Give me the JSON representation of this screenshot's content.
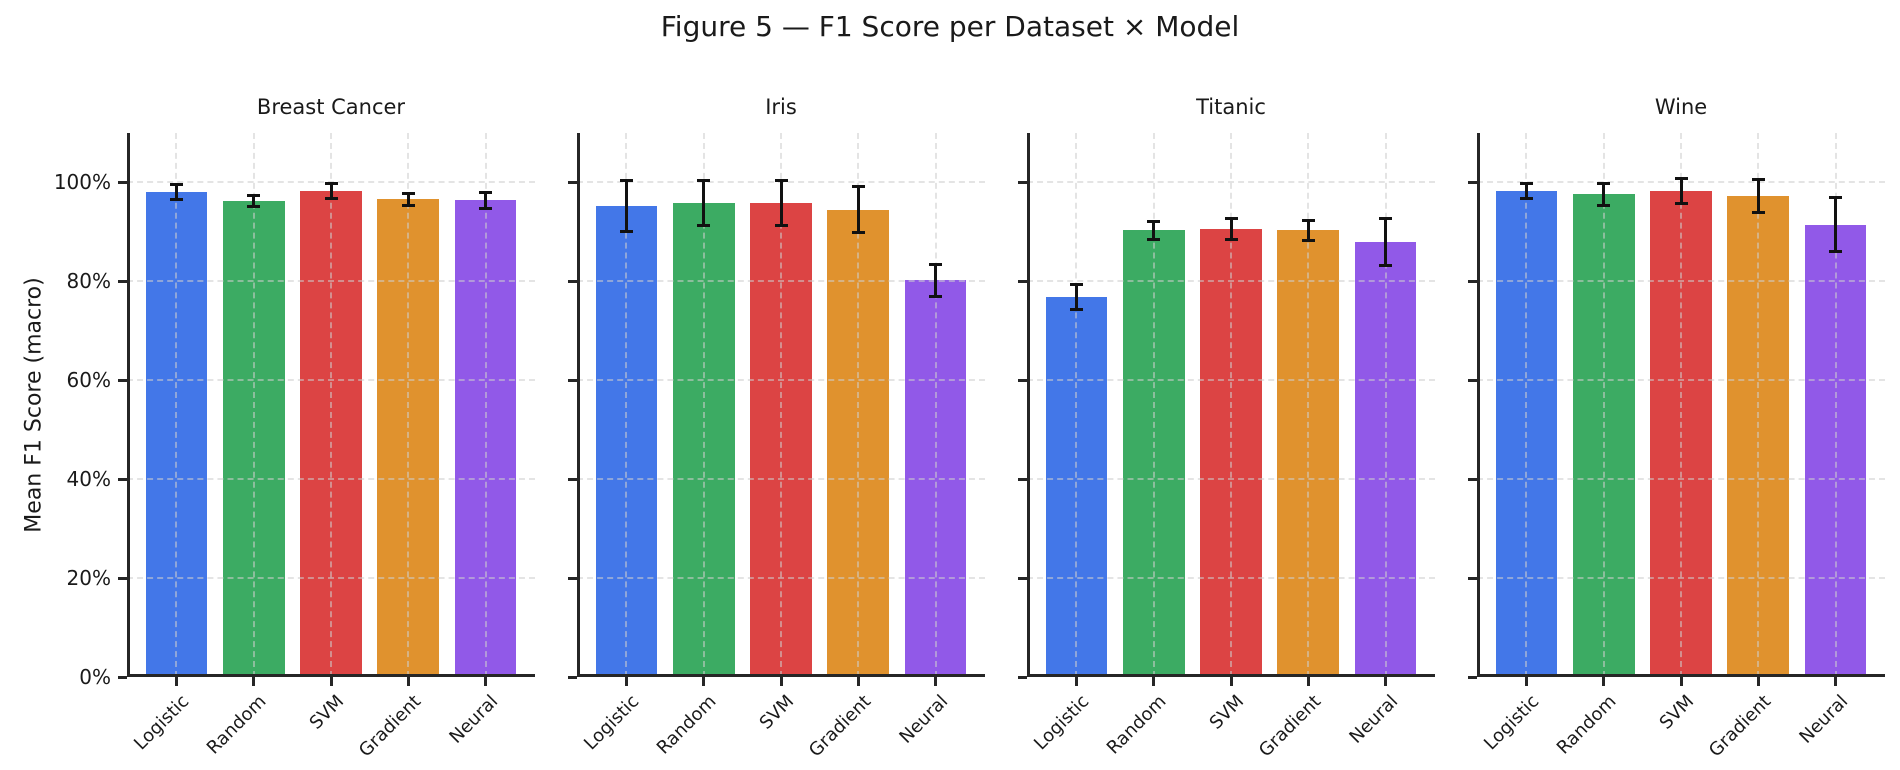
{
  "figure_title": "Figure 5 — F1 Score per Dataset × Model",
  "chart_data": {
    "type": "bar",
    "title": "Figure 5 — F1 Score per Dataset × Model",
    "ylabel": "Mean F1 Score (macro)",
    "xlabel": "",
    "value_unit": "percent",
    "categories": [
      "Logistic",
      "Random",
      "SVM",
      "Gradient",
      "Neural"
    ],
    "bar_colors": [
      "#4377e8",
      "#3cab63",
      "#dc4444",
      "#e0922e",
      "#9159e8"
    ],
    "yticks": [
      0,
      20,
      40,
      60,
      80,
      100
    ],
    "ytick_labels": [
      "0%",
      "20%",
      "40%",
      "60%",
      "80%",
      "100%"
    ],
    "ylim": [
      0,
      110
    ],
    "grid": {
      "style": "dashed",
      "horizontal": true,
      "vertical": true,
      "drawn_over_bars": true
    },
    "error_bars": true,
    "legend": "none",
    "panels": [
      {
        "title": "Breast Cancer",
        "values": [
          98.0,
          96.2,
          98.2,
          96.6,
          96.4
        ],
        "errors": [
          1.5,
          1.1,
          1.5,
          1.2,
          1.6
        ]
      },
      {
        "title": "Iris",
        "values": [
          95.2,
          95.9,
          95.8,
          94.5,
          80.2
        ],
        "errors": [
          5.1,
          4.5,
          4.5,
          4.7,
          3.2
        ]
      },
      {
        "title": "Titanic",
        "values": [
          76.8,
          90.3,
          90.6,
          90.3,
          88.0
        ],
        "errors": [
          2.5,
          1.8,
          2.2,
          2.0,
          4.8
        ]
      },
      {
        "title": "Wine",
        "values": [
          98.2,
          97.6,
          98.3,
          97.2,
          91.5
        ],
        "errors": [
          1.5,
          2.2,
          2.5,
          3.3,
          5.4
        ]
      }
    ]
  }
}
